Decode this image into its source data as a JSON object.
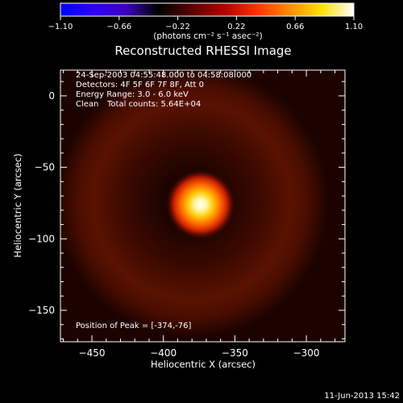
{
  "chart_data": {
    "type": "heatmap",
    "title": "Reconstructed RHESSI Image",
    "xlabel": "Heliocentric X (arcsec)",
    "ylabel": "Heliocentric Y (arcsec)",
    "xlim": [
      -472,
      -273
    ],
    "ylim": [
      -172,
      18
    ],
    "xticks": [
      -450,
      -400,
      -350,
      -300
    ],
    "yticks": [
      0,
      -50,
      -100,
      -150
    ],
    "xtick_labels": [
      "−450",
      "−400",
      "−350",
      "−300"
    ],
    "ytick_labels": [
      "0",
      "−50",
      "−100",
      "−150"
    ],
    "colorbar": {
      "min": -1.1,
      "max": 1.1,
      "ticks": [
        -1.1,
        -0.66,
        -0.22,
        0.22,
        0.66,
        1.1
      ],
      "tick_labels": [
        "−1.10",
        "−0.66",
        "−0.22",
        "0.22",
        "0.66",
        "1.10"
      ],
      "unit_label": "(photons cm⁻² s⁻¹ asec⁻²)",
      "colormap": [
        "#0000ff",
        "#2a00ff",
        "#3c00c0",
        "#000000",
        "#5a0000",
        "#b00000",
        "#ff3000",
        "#ff8a00",
        "#ffe000",
        "#ffffff"
      ]
    },
    "annotations": {
      "time_range": "24-Sep-2003 04:55:48.000 to 04:58:08.000",
      "detectors": "Detectors: 4F 5F 6F 7F 8F, Att 0",
      "energy_range": "Energy Range: 3.0 - 6.0 keV",
      "clean_label": "Clean",
      "total_counts": "Total counts: 5.64E+04",
      "peak_label": "Position of Peak = [-374,-76]"
    },
    "peak": {
      "x": -374,
      "y": -76,
      "value": 1.1
    },
    "source_sigma_arcsec": 8,
    "ring": {
      "center_x": -380,
      "center_y": -74,
      "radius_arcsec": 60,
      "width_arcsec": 11,
      "value": 0.3
    },
    "background_value": 0.12
  },
  "footer": {
    "date": "11-Jun-2013 15:42"
  }
}
